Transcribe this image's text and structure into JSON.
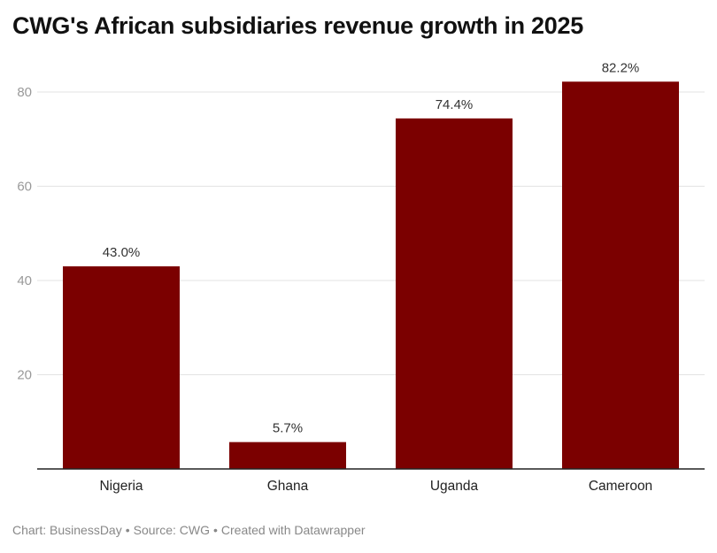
{
  "chart_data": {
    "type": "bar",
    "title": "CWG's African subsidiaries revenue growth in 2025",
    "xlabel": "",
    "ylabel": "",
    "categories": [
      "Nigeria",
      "Ghana",
      "Uganda",
      "Cameroon"
    ],
    "values": [
      43.0,
      5.7,
      74.4,
      82.2
    ],
    "data_labels": [
      "43.0%",
      "5.7%",
      "74.4%",
      "82.2%"
    ],
    "ylim": [
      0,
      80
    ],
    "yticks": [
      20,
      40,
      60,
      80
    ],
    "ytick_labels": [
      "20",
      "40",
      "60",
      "80"
    ],
    "grid": true,
    "legend": "none",
    "bar_color": "#7b0000"
  },
  "footer": {
    "chart_credit": "Chart: BusinessDay",
    "source": "Source: CWG",
    "tool": "Created with Datawrapper",
    "separator": "•"
  }
}
